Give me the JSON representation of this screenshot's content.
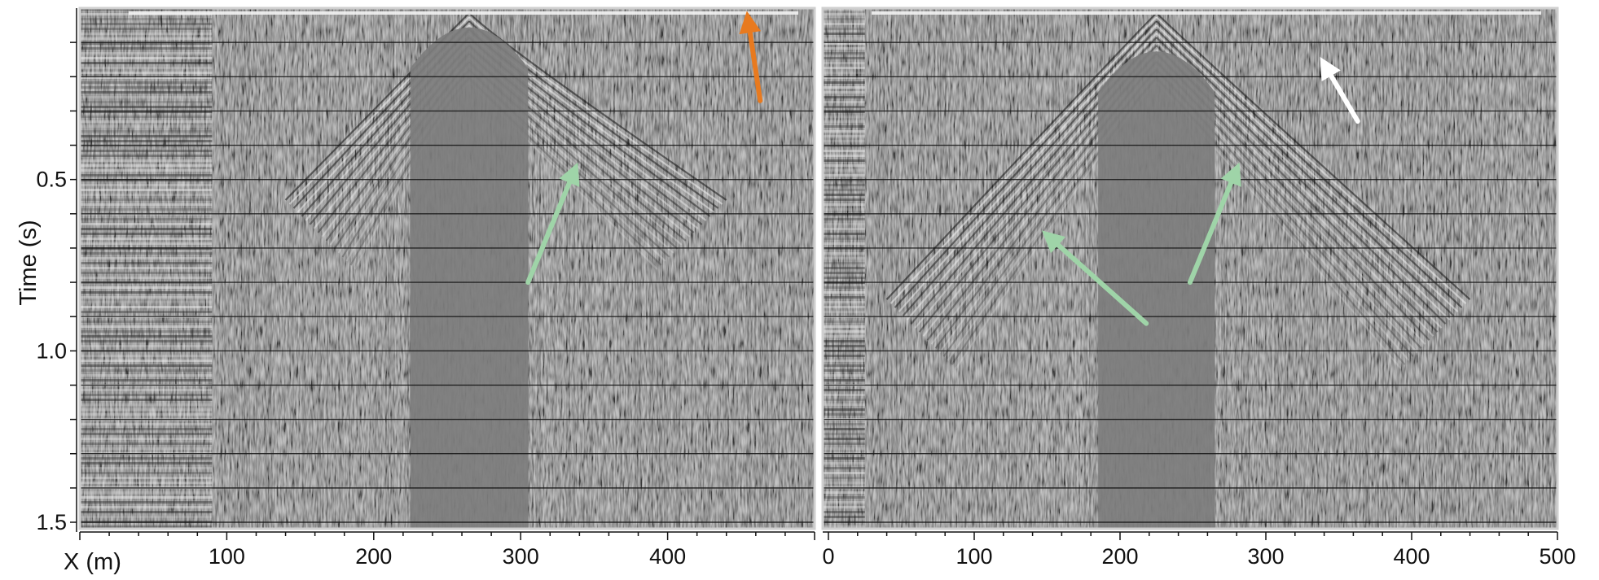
{
  "chart_data": [
    {
      "type": "heatmap",
      "panel": "left",
      "xlabel": "X (m)",
      "ylabel": "Time (s)",
      "xlim": [
        0,
        500
      ],
      "ylim": [
        0,
        1.5
      ],
      "y_inverted": true,
      "grid": true,
      "x_ticks": [
        100,
        200,
        300,
        400
      ],
      "x_tick_labels": [
        "100",
        "200",
        "300",
        "400"
      ],
      "y_ticks": [
        0.5,
        1.0,
        1.5
      ],
      "y_tick_labels": [
        "0.5",
        "1.0",
        "1.5"
      ],
      "grid_times": [
        0.1,
        0.2,
        0.3,
        0.4,
        0.5,
        0.6,
        0.7,
        0.8,
        0.9,
        1.0,
        1.1,
        1.2,
        1.3,
        1.4,
        1.5
      ],
      "apex": {
        "x": 265,
        "t": 0.0
      },
      "mute_zone": {
        "x_start": 225,
        "x_end": 305,
        "t_start": 0.08
      },
      "annotations": [
        {
          "color": "#9fd4a8",
          "tail": {
            "x": 305,
            "t": 0.8
          },
          "head": {
            "x": 336,
            "t": 0.48
          }
        },
        {
          "color": "#e87a1f",
          "tail": {
            "x": 463,
            "t": 0.27
          },
          "head": {
            "x": 455,
            "t": 0.04
          }
        }
      ]
    },
    {
      "type": "heatmap",
      "panel": "right",
      "xlabel": "",
      "ylabel": "",
      "xlim": [
        0,
        500
      ],
      "ylim": [
        0,
        1.5
      ],
      "y_inverted": true,
      "grid": true,
      "x_ticks": [
        0,
        100,
        200,
        300,
        400,
        500
      ],
      "x_tick_labels": [
        "0",
        "100",
        "200",
        "300",
        "400",
        "500"
      ],
      "grid_times": [
        0.1,
        0.2,
        0.3,
        0.4,
        0.5,
        0.6,
        0.7,
        0.8,
        0.9,
        1.0,
        1.1,
        1.2,
        1.3,
        1.4,
        1.5
      ],
      "apex": {
        "x": 225,
        "t": 0.0
      },
      "mute_zone": {
        "x_start": 185,
        "x_end": 265,
        "t_start": 0.15
      },
      "annotations": [
        {
          "color": "#9fd4a8",
          "tail": {
            "x": 218,
            "t": 0.92
          },
          "head": {
            "x": 152,
            "t": 0.67
          }
        },
        {
          "color": "#9fd4a8",
          "tail": {
            "x": 248,
            "t": 0.8
          },
          "head": {
            "x": 279,
            "t": 0.48
          }
        },
        {
          "color": "#ffffff",
          "tail": {
            "x": 363,
            "t": 0.33
          },
          "head": {
            "x": 341,
            "t": 0.17
          }
        }
      ]
    }
  ]
}
